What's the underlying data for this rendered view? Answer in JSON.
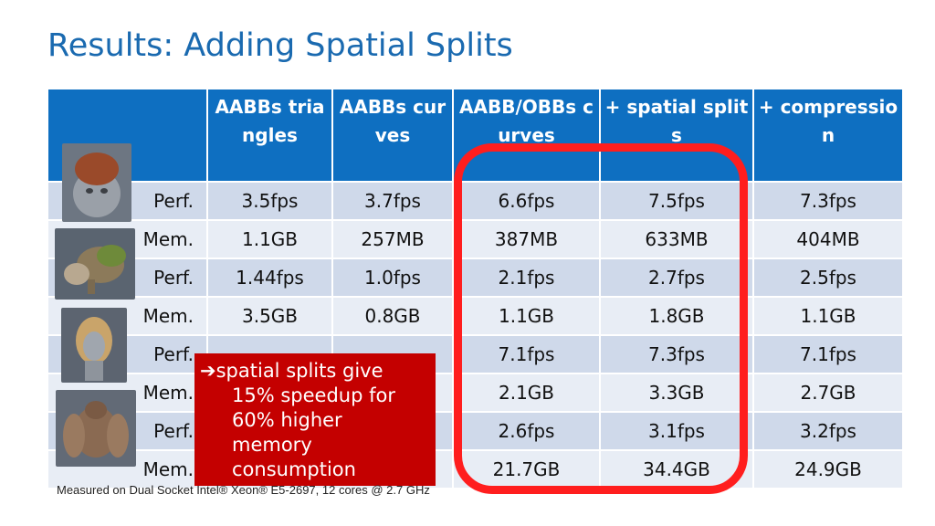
{
  "title": "Results: Adding Spatial Splits",
  "table": {
    "headers": [
      "",
      "AABBs triangles",
      "AABBs curves",
      "AABB/OBBs curves",
      "+ spatial splits",
      "+ compression"
    ],
    "rows": [
      [
        "Perf.",
        "3.5fps",
        "3.7fps",
        "6.6fps",
        "7.5fps",
        "7.3fps"
      ],
      [
        "Mem.",
        "1.1GB",
        "257MB",
        "387MB",
        "633MB",
        "404MB"
      ],
      [
        "Perf.",
        "1.44fps",
        "1.0fps",
        "2.1fps",
        "2.7fps",
        "2.5fps"
      ],
      [
        "Mem.",
        "3.5GB",
        "0.8GB",
        "1.1GB",
        "1.8GB",
        "1.1GB"
      ],
      [
        "Perf.",
        "",
        "",
        "7.1fps",
        "7.3fps",
        "7.1fps"
      ],
      [
        "Mem.",
        "",
        "",
        "2.1GB",
        "3.3GB",
        "2.7GB"
      ],
      [
        "Perf.",
        "",
        "",
        "2.6fps",
        "3.1fps",
        "3.2fps"
      ],
      [
        "Mem.",
        "",
        "",
        "21.7GB",
        "34.4GB",
        "24.9GB"
      ]
    ]
  },
  "callout": {
    "arrow": "➔",
    "line1": "spatial splits give",
    "line2": "15% speedup for",
    "line3": "60% higher",
    "line4": "memory",
    "line5": "consumption"
  },
  "footnote": "Measured on Dual Socket Intel® Xeon® E5-2697, 12 cores @ 2.7 GHz",
  "colors": {
    "title": "#1a6ab0",
    "header_bg": "#0e6fc1",
    "row_band_a": "#cfd9ea",
    "row_band_b": "#e8edf5",
    "highlight_ring": "#ff1e1e",
    "callout_bg": "#c40000"
  },
  "images": [
    "model-head-thumbnail",
    "model-creature-thumbnail",
    "model-hair-thumbnail",
    "model-bird-thumbnail"
  ]
}
